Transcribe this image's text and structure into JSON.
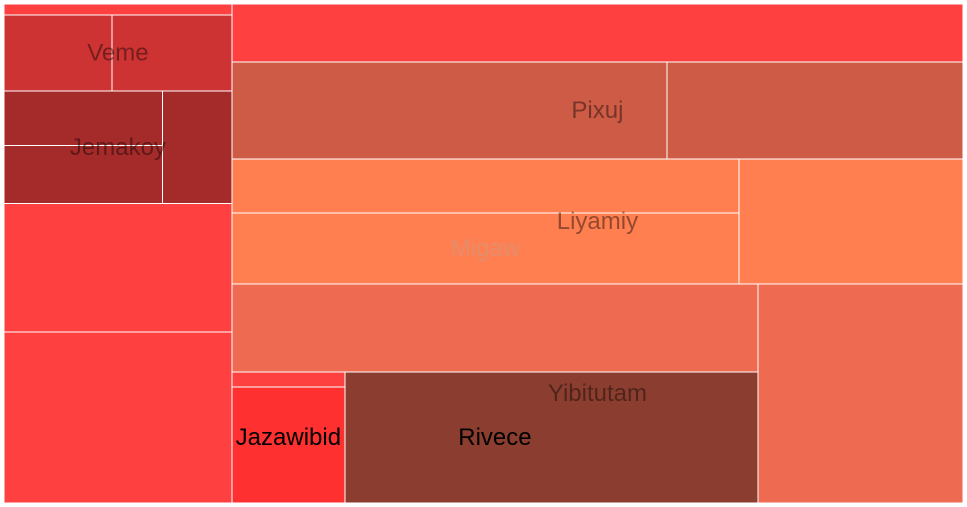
{
  "chart_data": {
    "type": "treemap",
    "root": {
      "children": [
        {
          "value": 25,
          "color": "#FF4040"
        },
        {
          "name": "Veme",
          "color": "#CD3333",
          "children": [
            {
              "value": 82
            },
            {
              "value": 91
            }
          ]
        },
        {
          "name": "Jemakoy",
          "color": "#A52A2A",
          "children": [
            {
              "value": 87
            },
            {
              "value": 92
            },
            {
              "value": 78
            }
          ]
        },
        {
          "value": 292,
          "color": "#FF4040"
        },
        {
          "value": 390,
          "color": "#FF4040"
        },
        {
          "value": 424,
          "color": "#FF4040"
        },
        {
          "name": "Pixuj",
          "color": "#CD5B45",
          "children": [
            {
              "value": 422
            },
            {
              "value": 287
            }
          ]
        },
        {
          "name": "Liyamiy",
          "color": "#FF7F50",
          "children": [
            {
              "value": 274
            },
            {
              "name": "Migaw",
              "value": 360
            },
            {
              "value": 280
            }
          ]
        },
        {
          "name": "Yibitutam",
          "color": "#EE6A50",
          "children": [
            {
              "value": 463
            },
            {
              "value": 449
            },
            {
              "name": "Rivece",
              "color": "#8B3E2F",
              "children": [
                {
                  "name": "Jazawibid",
                  "color": "#FF3030",
                  "children": [
                    {
                      "value": 17,
                      "color": "#FF4040"
                    },
                    {
                      "value": 131
                    }
                  ]
                },
                {
                  "value": 541
                }
              ]
            }
          ]
        }
      ]
    }
  }
}
